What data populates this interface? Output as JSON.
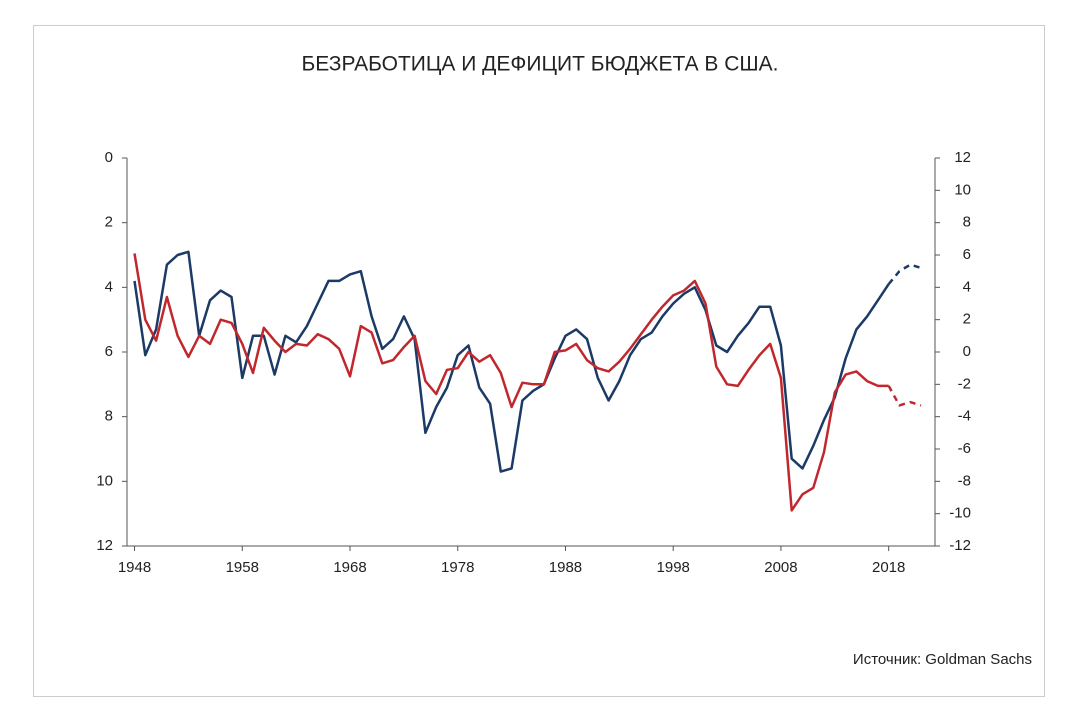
{
  "chart_data": {
    "type": "line",
    "title": "БЕЗРАБОТИЦА И ДЕФИЦИТ БЮДЖЕТА В США.",
    "source": "Источник: Goldman Sachs",
    "xlim": [
      1947.3,
      2022.3
    ],
    "xticks": [
      1948,
      1958,
      1968,
      1978,
      1988,
      1998,
      2008,
      2018
    ],
    "ylim": [
      0,
      12
    ],
    "y_inverted": true,
    "yticks": [
      0,
      2,
      4,
      6,
      8,
      10,
      12
    ],
    "y2lim": [
      -12,
      12
    ],
    "y2ticks": [
      12,
      10,
      8,
      6,
      4,
      2,
      0,
      -2,
      -4,
      -6,
      -8,
      -10,
      -12
    ],
    "series": [
      {
        "color": "#1b3a66",
        "axis": "y",
        "dashed": false,
        "x": [
          1948,
          1949,
          1950,
          1951,
          1952,
          1953,
          1954,
          1955,
          1956,
          1957,
          1958,
          1959,
          1960,
          1961,
          1962,
          1963,
          1964,
          1965,
          1966,
          1967,
          1968,
          1969,
          1970,
          1971,
          1972,
          1973,
          1974,
          1975,
          1976,
          1977,
          1978,
          1979,
          1980,
          1981,
          1982,
          1983,
          1984,
          1985,
          1986,
          1987,
          1988,
          1989,
          1990,
          1991,
          1992,
          1993,
          1994,
          1995,
          1996,
          1997,
          1998,
          1999,
          2000,
          2001,
          2002,
          2003,
          2004,
          2005,
          2006,
          2007,
          2008,
          2009,
          2010,
          2011,
          2012,
          2013,
          2014,
          2015,
          2016,
          2017,
          2018
        ],
        "values": [
          3.8,
          6.1,
          5.3,
          3.3,
          3.0,
          2.9,
          5.5,
          4.4,
          4.1,
          4.3,
          6.8,
          5.5,
          5.5,
          6.7,
          5.5,
          5.7,
          5.2,
          4.5,
          3.8,
          3.8,
          3.6,
          3.5,
          4.9,
          5.9,
          5.6,
          4.9,
          5.6,
          8.5,
          7.7,
          7.1,
          6.1,
          5.8,
          7.1,
          7.6,
          9.7,
          9.6,
          7.5,
          7.2,
          7.0,
          6.2,
          5.5,
          5.3,
          5.6,
          6.8,
          7.5,
          6.9,
          6.1,
          5.6,
          5.4,
          4.9,
          4.5,
          4.2,
          4.0,
          4.7,
          5.8,
          6.0,
          5.5,
          5.1,
          4.6,
          4.6,
          5.8,
          9.3,
          9.6,
          8.9,
          8.1,
          7.4,
          6.2,
          5.3,
          4.9,
          4.4,
          3.9
        ]
      },
      {
        "color": "#1b3a66",
        "axis": "y",
        "dashed": true,
        "x": [
          2018,
          2019,
          2020,
          2021
        ],
        "values": [
          3.9,
          3.5,
          3.3,
          3.4
        ]
      },
      {
        "color": "#c0282d",
        "axis": "y2",
        "dashed": false,
        "x": [
          1948,
          1949,
          1950,
          1951,
          1952,
          1953,
          1954,
          1955,
          1956,
          1957,
          1958,
          1959,
          1960,
          1961,
          1962,
          1963,
          1964,
          1965,
          1966,
          1967,
          1968,
          1969,
          1970,
          1971,
          1972,
          1973,
          1974,
          1975,
          1976,
          1977,
          1978,
          1979,
          1980,
          1981,
          1982,
          1983,
          1984,
          1985,
          1986,
          1987,
          1988,
          1989,
          1990,
          1991,
          1992,
          1993,
          1994,
          1995,
          1996,
          1997,
          1998,
          1999,
          2000,
          2001,
          2002,
          2003,
          2004,
          2005,
          2006,
          2007,
          2008,
          2009,
          2010,
          2011,
          2012,
          2013,
          2014,
          2015,
          2016,
          2017,
          2018
        ],
        "values": [
          6.1,
          2.0,
          0.7,
          3.4,
          1.0,
          -0.3,
          1.0,
          0.5,
          2.0,
          1.8,
          0.5,
          -1.3,
          1.5,
          0.7,
          0.0,
          0.5,
          0.4,
          1.1,
          0.8,
          0.2,
          -1.5,
          1.6,
          1.2,
          -0.7,
          -0.5,
          0.3,
          1.0,
          -1.8,
          -2.6,
          -1.1,
          -1.0,
          0.0,
          -0.6,
          -0.2,
          -1.3,
          -3.4,
          -1.9,
          -2.0,
          -2.0,
          0.0,
          0.1,
          0.5,
          -0.5,
          -1.0,
          -1.2,
          -0.6,
          0.2,
          1.1,
          2.0,
          2.8,
          3.5,
          3.8,
          4.4,
          3.0,
          -0.9,
          -2.0,
          -2.1,
          -1.1,
          -0.2,
          0.5,
          -1.6,
          -9.8,
          -8.8,
          -8.4,
          -6.2,
          -2.5,
          -1.4,
          -1.2,
          -1.8,
          -2.1,
          -2.1
        ]
      },
      {
        "color": "#c0282d",
        "axis": "y2",
        "dashed": true,
        "x": [
          2018,
          2019,
          2020,
          2021
        ],
        "values": [
          -2.1,
          -3.3,
          -3.1,
          -3.3
        ]
      }
    ]
  }
}
